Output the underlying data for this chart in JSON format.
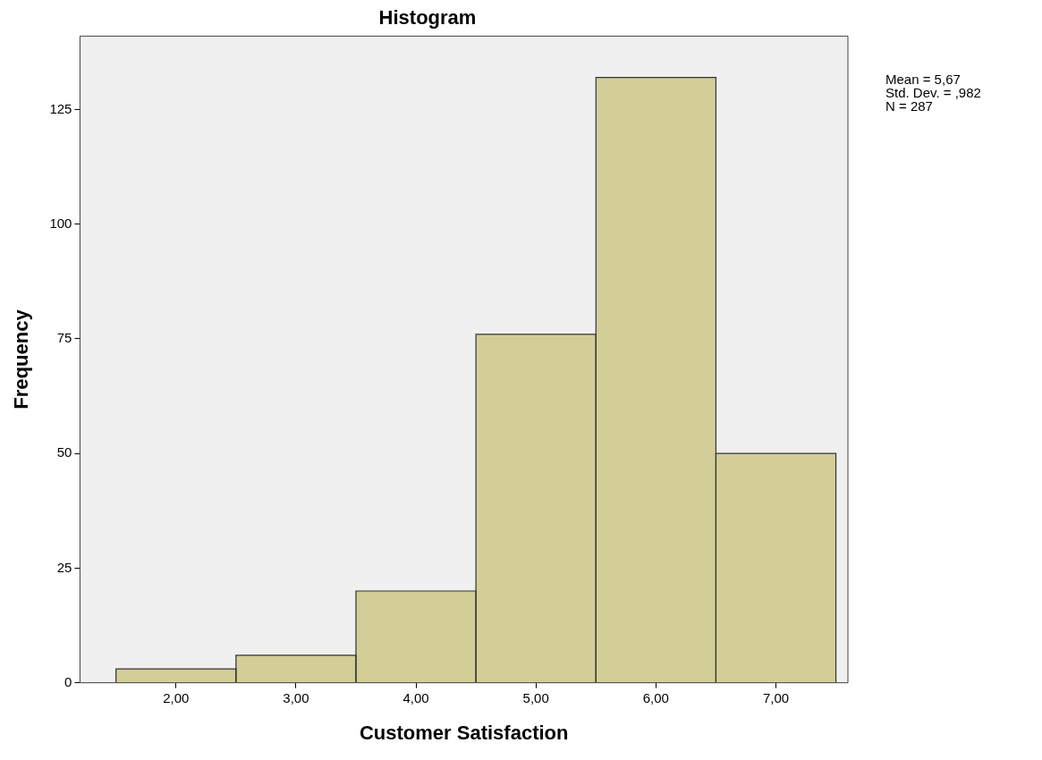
{
  "chart_data": {
    "type": "histogram",
    "title": "Histogram",
    "xlabel": "Customer Satisfaction",
    "ylabel": "Frequency",
    "bins": [
      1.5,
      2.5,
      3.5,
      4.5,
      5.5,
      6.5,
      7.5
    ],
    "values": [
      3,
      6,
      20,
      76,
      132,
      50
    ],
    "color": "#d3ce97",
    "xlim": [
      1.2,
      7.6
    ],
    "xticks": [
      {
        "value": 2,
        "label": "2,00"
      },
      {
        "value": 3,
        "label": "3,00"
      },
      {
        "value": 4,
        "label": "4,00"
      },
      {
        "value": 5,
        "label": "5,00"
      },
      {
        "value": 6,
        "label": "6,00"
      },
      {
        "value": 7,
        "label": "7,00"
      }
    ],
    "ylim": [
      0,
      141
    ],
    "yticks": [
      0,
      25,
      50,
      75,
      100,
      125
    ],
    "grid": false,
    "legend": false,
    "annotations": [
      "Mean = 5,67",
      "Std. Dev. = ,982",
      "N = 287"
    ]
  }
}
